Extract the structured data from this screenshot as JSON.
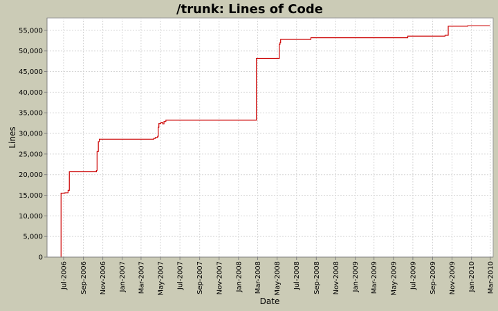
{
  "chart_data": {
    "type": "line",
    "title": "/trunk: Lines of Code",
    "xlabel": "Date",
    "ylabel": "Lines",
    "ylim": [
      0,
      58000
    ],
    "xlim": [
      "2006-05-10",
      "2010-03-10"
    ],
    "yticks": [
      0,
      5000,
      10000,
      15000,
      20000,
      25000,
      30000,
      35000,
      40000,
      45000,
      50000,
      55000
    ],
    "ytick_labels": [
      "0",
      "5,000",
      "10,000",
      "15,000",
      "20,000",
      "25,000",
      "30,000",
      "35,000",
      "40,000",
      "45,000",
      "50,000",
      "55,000"
    ],
    "xticks": [
      "2006-07-01",
      "2006-09-01",
      "2006-11-01",
      "2007-01-01",
      "2007-03-01",
      "2007-05-01",
      "2007-07-01",
      "2007-09-01",
      "2007-11-01",
      "2008-01-01",
      "2008-03-01",
      "2008-05-01",
      "2008-07-01",
      "2008-09-01",
      "2008-11-01",
      "2009-01-01",
      "2009-03-01",
      "2009-05-01",
      "2009-07-01",
      "2009-09-01",
      "2009-11-01",
      "2010-01-01",
      "2010-03-01"
    ],
    "xtick_labels": [
      "Jul-2006",
      "Sep-2006",
      "Nov-2006",
      "Jan-2007",
      "Mar-2007",
      "May-2007",
      "Jul-2007",
      "Sep-2007",
      "Nov-2007",
      "Jan-2008",
      "Mar-2008",
      "May-2008",
      "Jul-2008",
      "Sep-2008",
      "Nov-2008",
      "Jan-2009",
      "Mar-2009",
      "May-2009",
      "Jul-2009",
      "Sep-2009",
      "Nov-2009",
      "Jan-2010",
      "Mar-2010"
    ],
    "grid": true,
    "line_color": "#cc0000",
    "step": true,
    "series": [
      {
        "points": [
          [
            "2006-06-22",
            0
          ],
          [
            "2006-06-23",
            15500
          ],
          [
            "2006-07-05",
            15600
          ],
          [
            "2006-07-15",
            16200
          ],
          [
            "2006-07-19",
            20700
          ],
          [
            "2006-10-12",
            21000
          ],
          [
            "2006-10-14",
            25600
          ],
          [
            "2006-10-18",
            28000
          ],
          [
            "2006-10-21",
            28600
          ],
          [
            "2007-04-10",
            28800
          ],
          [
            "2007-04-15",
            29000
          ],
          [
            "2007-04-22",
            29300
          ],
          [
            "2007-04-24",
            31500
          ],
          [
            "2007-04-26",
            32400
          ],
          [
            "2007-05-02",
            32600
          ],
          [
            "2007-05-08",
            32300
          ],
          [
            "2007-05-12",
            32900
          ],
          [
            "2007-05-18",
            33200
          ],
          [
            "2008-02-26",
            48200
          ],
          [
            "2008-05-08",
            51600
          ],
          [
            "2008-05-10",
            52000
          ],
          [
            "2008-05-12",
            52800
          ],
          [
            "2008-08-15",
            53200
          ],
          [
            "2009-06-15",
            53600
          ],
          [
            "2009-10-10",
            53800
          ],
          [
            "2009-10-20",
            56000
          ],
          [
            "2009-12-20",
            56100
          ],
          [
            "2010-02-28",
            56100
          ]
        ]
      }
    ]
  }
}
